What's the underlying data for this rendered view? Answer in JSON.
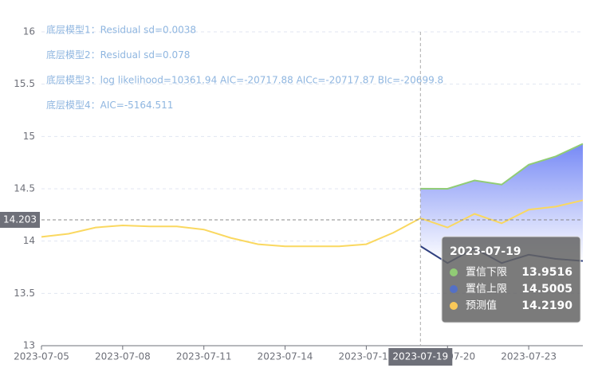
{
  "chart_data": {
    "type": "line",
    "categories": [
      "2023-07-05",
      "2023-07-06",
      "2023-07-07",
      "2023-07-08",
      "2023-07-09",
      "2023-07-10",
      "2023-07-11",
      "2023-07-12",
      "2023-07-13",
      "2023-07-14",
      "2023-07-15",
      "2023-07-16",
      "2023-07-17",
      "2023-07-18",
      "2023-07-19",
      "2023-07-20",
      "2023-07-21",
      "2023-07-22",
      "2023-07-23",
      "2023-07-24",
      "2023-07-25"
    ],
    "xticks": [
      "2023-07-05",
      "2023-07-08",
      "2023-07-11",
      "2023-07-14",
      "2023-07-17",
      "2023-07-20",
      "2023-07-23"
    ],
    "series": [
      {
        "color": "#91cc75",
        "line_color": "#2f3f7f",
        "values": [
          null,
          null,
          null,
          null,
          null,
          null,
          null,
          null,
          null,
          null,
          null,
          null,
          null,
          null,
          13.9516,
          13.79,
          13.93,
          13.79,
          13.87,
          13.83,
          13.81
        ]
      },
      {
        "color": "#5470c6",
        "line_color": "#91cc75",
        "values": [
          null,
          null,
          null,
          null,
          null,
          null,
          null,
          null,
          null,
          null,
          null,
          null,
          null,
          null,
          14.5005,
          14.5,
          14.58,
          14.54,
          14.73,
          14.81,
          14.93
        ]
      },
      {
        "color": "#fac858",
        "line_color": "#fad860",
        "values": [
          14.04,
          14.07,
          14.13,
          14.15,
          14.14,
          14.14,
          14.11,
          14.03,
          13.97,
          13.95,
          13.95,
          13.95,
          13.97,
          14.08,
          14.219,
          14.13,
          14.26,
          14.17,
          14.3,
          14.33,
          14.39
        ]
      }
    ],
    "band_fill": "#6f83f5",
    "ylim": [
      13,
      16
    ],
    "yticks": [
      13,
      13.5,
      14,
      14.5,
      15,
      15.5,
      16
    ],
    "grid": true,
    "annotations": [
      "底层模型1：Residual sd=0.0038",
      "底层模型2：Residual sd=0.078",
      "底层模型3：log likelihood=10361.94 AIC=-20717.88 AICc=-20717.87 BIc=-20699.8",
      "底层模型4：AIC=-5164.511"
    ],
    "axis_pointer": {
      "x": "2023-07-19",
      "y": 14.203
    },
    "tooltip": {
      "title": "2023-07-19",
      "items": [
        {
          "name": "置信下限",
          "color": "#91cc75",
          "value": "13.9516"
        },
        {
          "name": "置信上限",
          "color": "#5470c6",
          "value": "14.5005"
        },
        {
          "name": "预测值",
          "color": "#fac858",
          "value": "14.2190"
        }
      ]
    }
  }
}
